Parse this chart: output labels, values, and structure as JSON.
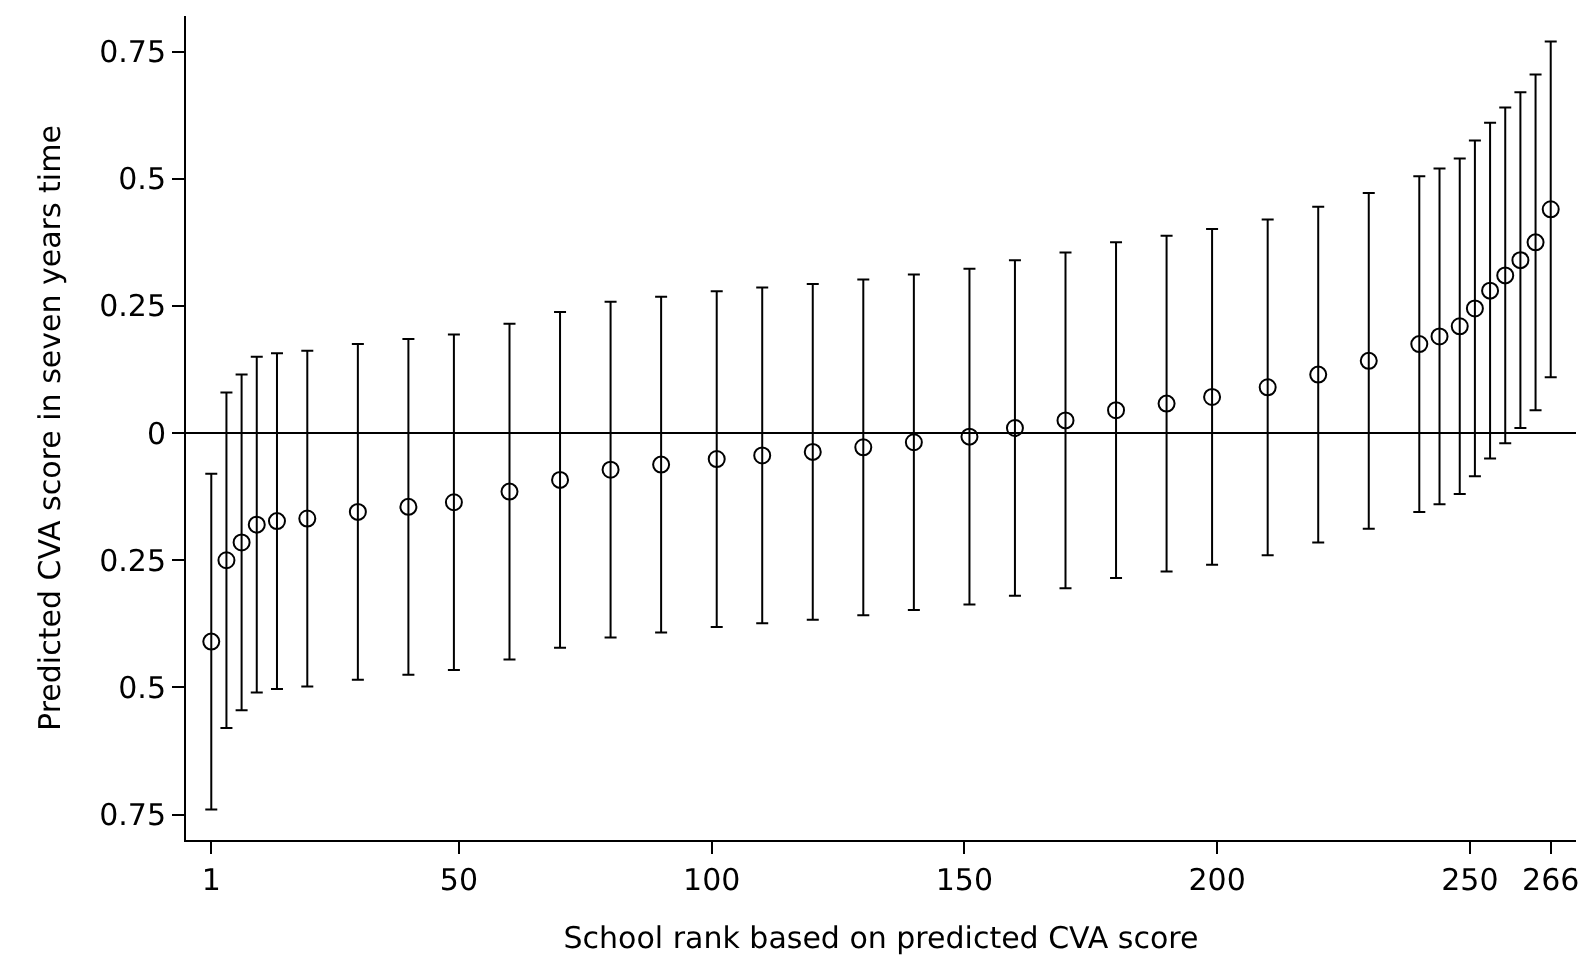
{
  "chart_data": {
    "type": "scatter",
    "xlabel": "School rank based on predicted CVA score",
    "ylabel": "Predicted CVA score in seven years time",
    "x": [
      1,
      4,
      7,
      10,
      14,
      20,
      30,
      40,
      49,
      60,
      70,
      80,
      90,
      101,
      110,
      120,
      130,
      140,
      151,
      160,
      170,
      180,
      190,
      199,
      210,
      220,
      230,
      240,
      244,
      248,
      251,
      254,
      257,
      260,
      263,
      266
    ],
    "series": [
      {
        "color": "#000000",
        "values": [
          -0.41,
          -0.25,
          -0.215,
          -0.18,
          -0.173,
          -0.168,
          -0.155,
          -0.145,
          -0.136,
          -0.115,
          -0.092,
          -0.072,
          -0.062,
          -0.051,
          -0.044,
          -0.037,
          -0.028,
          -0.018,
          -0.007,
          0.01,
          0.025,
          0.045,
          0.058,
          0.071,
          0.09,
          0.115,
          0.142,
          0.175,
          0.19,
          0.21,
          0.245,
          0.28,
          0.31,
          0.34,
          0.375,
          0.44
        ],
        "errors": [
          0.33,
          0.33,
          0.33,
          0.33,
          0.33,
          0.33,
          0.33,
          0.33,
          0.33,
          0.33,
          0.33,
          0.33,
          0.33,
          0.33,
          0.33,
          0.33,
          0.33,
          0.33,
          0.33,
          0.33,
          0.33,
          0.33,
          0.33,
          0.33,
          0.33,
          0.33,
          0.33,
          0.33,
          0.33,
          0.33,
          0.33,
          0.33,
          0.33,
          0.33,
          0.33,
          0.33
        ]
      }
    ],
    "marker": "circle",
    "xlim": [
      -4,
      271
    ],
    "xticks": [
      1,
      50,
      100,
      150,
      200,
      250,
      266
    ],
    "ylim": [
      -0.8,
      0.82
    ],
    "yticks": [
      {
        "value": -0.75,
        "label": "0.75"
      },
      {
        "value": -0.5,
        "label": "0.5"
      },
      {
        "value": -0.25,
        "label": "0.25"
      },
      {
        "value": 0,
        "label": "0"
      },
      {
        "value": 0.25,
        "label": "0.25"
      },
      {
        "value": 0.5,
        "label": "0.5"
      },
      {
        "value": 0.75,
        "label": "0.75"
      }
    ],
    "ref_lines": [
      {
        "axis": "y",
        "value": 0,
        "color": "#000000"
      }
    ]
  }
}
